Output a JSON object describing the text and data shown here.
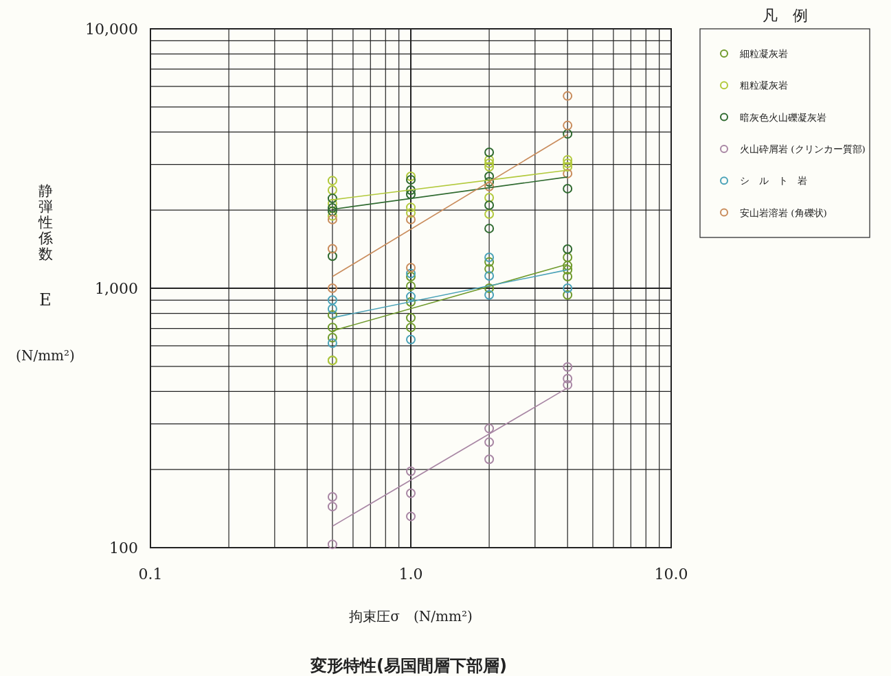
{
  "chart_data": {
    "type": "scatter",
    "title": "変形特性(易国間層下部層)",
    "xlabel": "拘束圧σ　(N/mm²)",
    "ylabel": "静弾性係数 E (N/mm²)",
    "legend_title": "凡　例",
    "log": "xy",
    "grid": true,
    "legend": "right",
    "xlim": [
      0.1,
      10
    ],
    "ylim": [
      100,
      10000
    ],
    "xticks": [
      {
        "value": 0.1,
        "label": "0.1"
      },
      {
        "value": 0.2,
        "label": null
      },
      {
        "value": 0.3,
        "label": null
      },
      {
        "value": 0.4,
        "label": null
      },
      {
        "value": 0.5,
        "label": null
      },
      {
        "value": 0.6,
        "label": null
      },
      {
        "value": 0.7,
        "label": null
      },
      {
        "value": 0.8,
        "label": null
      },
      {
        "value": 0.9,
        "label": null
      },
      {
        "value": 1,
        "label": "1.0"
      },
      {
        "value": 2,
        "label": null
      },
      {
        "value": 3,
        "label": null
      },
      {
        "value": 4,
        "label": null
      },
      {
        "value": 5,
        "label": null
      },
      {
        "value": 6,
        "label": null
      },
      {
        "value": 7,
        "label": null
      },
      {
        "value": 8,
        "label": null
      },
      {
        "value": 9,
        "label": null
      },
      {
        "value": 10,
        "label": "10.0"
      }
    ],
    "yticks": [
      100,
      {
        "value": 200,
        "label": null
      },
      {
        "value": 300,
        "label": null
      },
      {
        "value": 400,
        "label": null
      },
      {
        "value": 500,
        "label": null
      },
      {
        "value": 600,
        "label": null
      },
      {
        "value": 700,
        "label": null
      },
      {
        "value": 800,
        "label": null
      },
      {
        "value": 900,
        "label": null
      },
      {
        "value": 1000,
        "label": "1,000"
      },
      {
        "value": 2000,
        "label": null
      },
      {
        "value": 3000,
        "label": null
      },
      {
        "value": 4000,
        "label": null
      },
      {
        "value": 5000,
        "label": null
      },
      {
        "value": 6000,
        "label": null
      },
      {
        "value": 7000,
        "label": null
      },
      {
        "value": 8000,
        "label": null
      },
      {
        "value": 9000,
        "label": null
      },
      {
        "value": 10000,
        "label": "10,000"
      }
    ],
    "series": [
      {
        "name": "細粒凝灰岩",
        "marker": "circle",
        "color": "#6f9a2c",
        "x": [
          0.5,
          0.5,
          0.5,
          0.5,
          1,
          1,
          1,
          1,
          1,
          2,
          2,
          2,
          4,
          4,
          4,
          4,
          4
        ],
        "values": [
          789,
          706,
          645,
          527,
          1109,
          1019,
          885,
          769,
          706,
          1262,
          1187,
          1000,
          1315,
          1222,
          1178,
          1109,
          942
        ]
      },
      {
        "name": "粗粒凝灰岩",
        "marker": "circle",
        "color": "#b2c93c",
        "x": [
          0.5,
          0.5,
          0.5,
          0.5,
          0.5,
          1,
          1,
          1,
          2,
          2,
          2,
          2,
          2,
          4,
          4,
          4
        ],
        "values": [
          2600,
          2390,
          2120,
          1900,
          527,
          2700,
          2050,
          1950,
          3126,
          3030,
          2940,
          2235,
          1930,
          3126,
          3030,
          2940
        ]
      },
      {
        "name": "暗灰色火山礫凝灰岩",
        "marker": "circle",
        "color": "#2f6a30",
        "x": [
          0.5,
          0.5,
          0.5,
          0.5,
          1,
          1,
          1,
          2,
          2,
          2,
          2,
          2,
          4,
          4,
          4
        ],
        "values": [
          2220,
          2040,
          1980,
          1330,
          2620,
          2390,
          2300,
          3340,
          2700,
          2570,
          2090,
          1700,
          3935,
          2420,
          1415
        ]
      },
      {
        "name": "火山砕屑岩 (クリンカー質部)",
        "marker": "circle",
        "color": "#a886a4",
        "x": [
          0.5,
          0.5,
          0.5,
          1,
          1,
          1,
          2,
          2,
          2,
          4,
          4,
          4
        ],
        "values": [
          157,
          144,
          103,
          197,
          162,
          132,
          288,
          255,
          219,
          497,
          448,
          424
        ]
      },
      {
        "name": "シ　ル　ト　岩",
        "marker": "circle",
        "color": "#4aa2b8",
        "x": [
          0.5,
          0.5,
          0.5,
          1,
          1,
          1,
          2,
          2,
          2,
          4
        ],
        "values": [
          900,
          833,
          614,
          1140,
          929,
          634,
          1315,
          1116,
          942,
          1000
        ]
      },
      {
        "name": "安山岩溶岩 (角礫状)",
        "marker": "circle",
        "color": "#c98c5c",
        "x": [
          0.5,
          0.5,
          0.5,
          1,
          1,
          2,
          4,
          4,
          4
        ],
        "values": [
          1840,
          1420,
          1000,
          1840,
          1200,
          2466,
          5510,
          4240,
          2767
        ]
      },
      {
        "type": "line",
        "color": "#6f9a2c",
        "x": [
          0.5,
          4
        ],
        "values": [
          685,
          1238
        ]
      },
      {
        "type": "line",
        "color": "#b2c93c",
        "x": [
          0.5,
          4
        ],
        "values": [
          2193,
          2851
        ]
      },
      {
        "type": "line",
        "color": "#2f6a30",
        "x": [
          0.5,
          4
        ],
        "values": [
          2015,
          2685
        ]
      },
      {
        "type": "line",
        "color": "#a886a4",
        "x": [
          0.5,
          4
        ],
        "values": [
          121,
          413
        ]
      },
      {
        "type": "line",
        "color": "#4aa2b8",
        "x": [
          0.5,
          4
        ],
        "values": [
          770,
          1178
        ]
      },
      {
        "type": "line",
        "color": "#c98c5c",
        "x": [
          0.5,
          4
        ],
        "values": [
          1109,
          3914
        ]
      }
    ]
  }
}
